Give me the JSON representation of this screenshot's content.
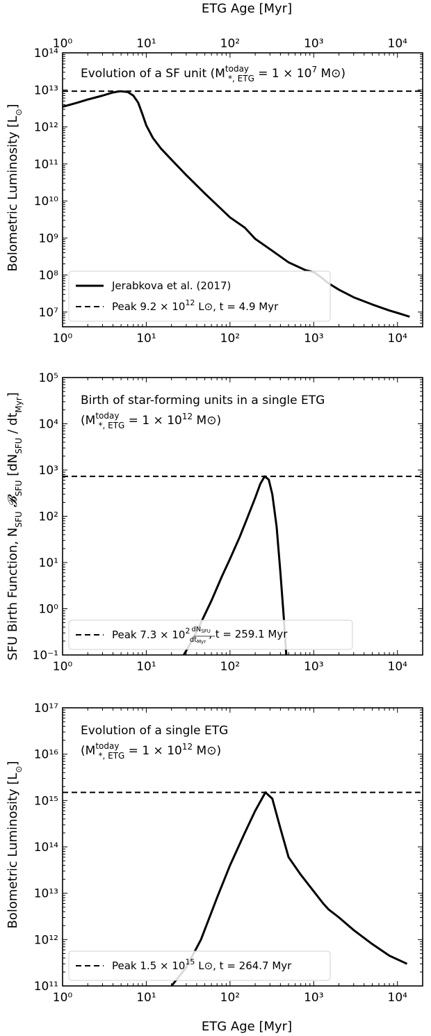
{
  "top_axis_label": "ETG Age [Myr]",
  "bottom_axis_label": "ETG Age [Myr]",
  "ylabel_luminosity_top": "Bolometric Luminosity [L⊙]",
  "ylabel_birth": "SFU Birth Function, NSFU 𝓑SFU [dNSFU / dtMyr]",
  "ylabel_luminosity_bottom": "Bolometric Luminosity [L⊙]",
  "chart_data": [
    {
      "type": "line",
      "title": "Evolution of a SF unit (M*,ETG today = 1 × 10⁷ M⊙)",
      "title_lines": [
        "Evolution of a SF unit (M",
        "today",
        "*, ETG",
        " = 1 × 10",
        "7",
        " M⊙)"
      ],
      "xlabel": "ETG Age [Myr]",
      "ylabel": "Bolometric Luminosity [L⊙]",
      "xscale": "log",
      "yscale": "log",
      "xlim": [
        1,
        20000
      ],
      "ylim": [
        4000000.0,
        100000000000000.0
      ],
      "x_ticks": [
        "10⁰",
        "10¹",
        "10²",
        "10³",
        "10⁴"
      ],
      "y_ticks": [
        "10⁷",
        "10⁸",
        "10⁹",
        "10¹⁰",
        "10¹¹",
        "10¹²",
        "10¹³",
        "10¹⁴"
      ],
      "series": [
        {
          "name": "Jerabkova et al. (2017)",
          "style": "solid",
          "x": [
            1,
            1.5,
            2,
            3,
            4,
            4.9,
            6,
            7,
            8,
            9,
            10,
            12,
            15,
            20,
            30,
            50,
            80,
            100,
            150,
            200,
            300,
            500,
            800,
            1000,
            1200,
            1500,
            2000,
            3000,
            5000,
            8000,
            10000,
            14000
          ],
          "y": [
            3500000000000.0,
            4500000000000.0,
            5500000000000.0,
            7000000000000.0,
            8500000000000.0,
            9200000000000.0,
            8800000000000.0,
            7000000000000.0,
            4500000000000.0,
            2200000000000.0,
            1100000000000.0,
            500000000000.0,
            260000000000.0,
            130000000000.0,
            50000000000.0,
            16000000000.0,
            5800000000.0,
            3600000000.0,
            1900000000.0,
            950000000.0,
            500000000.0,
            220000000.0,
            135000000.0,
            120000000.0,
            90000000.0,
            60000000.0,
            40000000.0,
            25000000.0,
            16000000.0,
            11000000.0,
            9500000.0,
            7500000.0
          ]
        },
        {
          "name": "Peak 9.2 × 10¹² L⊙, t = 4.9 Myr",
          "style": "dashed",
          "y_const": 9200000000000.0
        }
      ],
      "legend_entries": [
        {
          "label": "Jerabkova et al. (2017)",
          "style": "solid"
        },
        {
          "label_parts": [
            "Peak 9.2 × 10",
            "12",
            " L⊙, t = 4.9 Myr"
          ],
          "style": "dashed"
        }
      ],
      "legend_position": "bottom-left"
    },
    {
      "type": "line",
      "title": "Birth of star-forming units in a single ETG (M*,ETG today = 1 × 10¹² M⊙)",
      "title_line1": "Birth of star-forming units in a single ETG",
      "title_line2_parts": [
        "(M",
        "today",
        "*, ETG",
        " = 1 × 10",
        "12",
        " M⊙)"
      ],
      "xlabel": "",
      "ylabel": "SFU Birth Function, NSFU 𝓑SFU [dNSFU / dtMyr]",
      "xscale": "log",
      "yscale": "log",
      "xlim": [
        1,
        20000
      ],
      "ylim": [
        0.1,
        100000
      ],
      "x_ticks": [
        "10⁰",
        "10¹",
        "10²",
        "10³",
        "10⁴"
      ],
      "y_ticks": [
        "10⁻¹",
        "10⁰",
        "10¹",
        "10²",
        "10³",
        "10⁴",
        "10⁵"
      ],
      "series": [
        {
          "name": "",
          "style": "solid",
          "x": [
            28,
            35,
            45,
            60,
            80,
            100,
            130,
            160,
            200,
            230,
            259.1,
            290,
            320,
            360,
            400,
            440,
            470
          ],
          "y": [
            0.1,
            0.2,
            0.5,
            1.5,
            5,
            12,
            35,
            90,
            250,
            500,
            730,
            620,
            300,
            60,
            6,
            0.6,
            0.1
          ]
        },
        {
          "name": "Peak 7.3 × 10² dNSFU/dtMyr, t = 259.1 Myr",
          "style": "dashed",
          "y_const": 730
        }
      ],
      "legend_entries": [
        {
          "label_parts": [
            "Peak 7.3 × 10",
            "2",
            "dN",
            "SFU",
            "dt",
            "Myr",
            ", t = 259.1 Myr"
          ],
          "style": "dashed"
        }
      ],
      "legend_position": "bottom-left"
    },
    {
      "type": "line",
      "title": "Evolution of a single ETG (M*,ETG today = 1 × 10¹² M⊙)",
      "title_line1": "Evolution of a single ETG",
      "title_line2_parts": [
        "(M",
        "today",
        "*, ETG",
        " = 1 × 10",
        "12",
        " M⊙)"
      ],
      "xlabel": "ETG Age [Myr]",
      "ylabel": "Bolometric Luminosity [L⊙]",
      "xscale": "log",
      "yscale": "log",
      "xlim": [
        1,
        20000
      ],
      "ylim": [
        100000000000.0,
        1e+17
      ],
      "x_ticks": [
        "10⁰",
        "10¹",
        "10²",
        "10³",
        "10⁴"
      ],
      "y_ticks": [
        "10¹¹",
        "10¹²",
        "10¹³",
        "10¹⁴",
        "10¹⁵",
        "10¹⁶",
        "10¹⁷"
      ],
      "series": [
        {
          "name": "",
          "style": "solid",
          "x": [
            20,
            30,
            45,
            70,
            100,
            150,
            200,
            264.7,
            320,
            400,
            500,
            700,
            1000,
            1300,
            1500,
            2000,
            3000,
            5000,
            8000,
            13000
          ],
          "y": [
            100000000000.0,
            250000000000.0,
            1000000000000.0,
            8000000000000.0,
            40000000000000.0,
            200000000000000.0,
            600000000000000.0,
            1500000000000000.0,
            1100000000000000.0,
            250000000000000.0,
            60000000000000.0,
            25000000000000.0,
            11000000000000.0,
            6000000000000.0,
            4500000000000.0,
            3000000000000.0,
            1600000000000.0,
            800000000000.0,
            450000000000.0,
            300000000000.0
          ]
        },
        {
          "name": "Peak 1.5 × 10¹⁵ L⊙, t = 264.7 Myr",
          "style": "dashed",
          "y_const": 1500000000000000.0
        }
      ],
      "legend_entries": [
        {
          "label_parts": [
            "Peak 1.5 × 10",
            "15",
            " L⊙, t = 264.7 Myr"
          ],
          "style": "dashed"
        }
      ],
      "legend_position": "bottom-left"
    }
  ]
}
